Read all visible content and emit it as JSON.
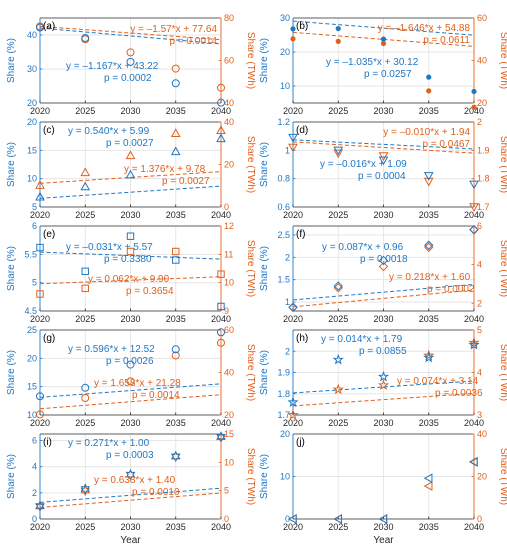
{
  "figure": {
    "xlabel": "Year",
    "left_ylabel": "Share (%)",
    "right_ylabel": "Share (TWh)",
    "colors": {
      "left": "#1f77c4",
      "right": "#e0601c"
    }
  },
  "chart_data": [
    {
      "panel_label": "(a)",
      "type": "scatter",
      "x": [
        2020,
        2025,
        2030,
        2035,
        2040
      ],
      "xlim": [
        2020,
        2040
      ],
      "left": {
        "ylim": [
          20,
          45
        ],
        "yticks": [
          20,
          30,
          40
        ],
        "marker": "circle",
        "values": [
          42.2,
          39.1,
          32.1,
          25.8,
          20.1
        ],
        "fit": {
          "slope": -1.167,
          "intercept": 43.22
        },
        "eq": "y = –1.167*x + 43.22",
        "p": "p = 0.0002"
      },
      "right": {
        "ylim": [
          40,
          80
        ],
        "yticks": [
          40,
          60,
          80
        ],
        "marker": "circle",
        "values": [
          76.0,
          70.0,
          63.8,
          56.2,
          47.2
        ],
        "fit": {
          "slope": -1.57,
          "intercept": 77.64
        },
        "eq": "y = –1.57*x + 77.64",
        "p": "p = 0.0014"
      }
    },
    {
      "panel_label": "(b)",
      "type": "scatter",
      "x": [
        2020,
        2025,
        2030,
        2035,
        2040
      ],
      "xlim": [
        2020,
        2040
      ],
      "left": {
        "ylim": [
          5,
          30
        ],
        "yticks": [
          10,
          20,
          30
        ],
        "marker": "dot",
        "values": [
          26.8,
          26.9,
          23.8,
          12.6,
          8.4
        ],
        "fit": {
          "slope": -1.035,
          "intercept": 30.12
        },
        "eq": "y = –1.035*x + 30.12",
        "p": "p = 0.0257"
      },
      "right": {
        "ylim": [
          20,
          60
        ],
        "yticks": [
          20,
          40,
          60
        ],
        "marker": "dot",
        "values": [
          50.2,
          49.0,
          48.0,
          25.7,
          18.0
        ],
        "fit": {
          "slope": -1.646,
          "intercept": 54.88
        },
        "eq": "y = –1.646*x + 54.88",
        "p": "p = 0.0611"
      }
    },
    {
      "panel_label": "(c)",
      "type": "scatter",
      "x": [
        2020,
        2025,
        2030,
        2035,
        2040
      ],
      "xlim": [
        2020,
        2040
      ],
      "left": {
        "ylim": [
          5,
          20
        ],
        "yticks": [
          5,
          10,
          15,
          20
        ],
        "marker": "triangle-up",
        "values": [
          6.8,
          8.6,
          10.7,
          14.8,
          17.1
        ],
        "fit": {
          "slope": 0.54,
          "intercept": 5.99
        },
        "eq": "y = 0.540*x + 5.99",
        "p": "p = 0.0027"
      },
      "right": {
        "ylim": [
          0,
          40
        ],
        "yticks": [
          0,
          20,
          40
        ],
        "marker": "triangle-up",
        "values": [
          10.3,
          16.3,
          24.3,
          34.7,
          36.1
        ],
        "fit": {
          "slope": 1.376,
          "intercept": 9.78
        },
        "eq": "y = 1.376*x + 9.78",
        "p": "p = 0.0027"
      }
    },
    {
      "panel_label": "(d)",
      "type": "scatter",
      "x": [
        2020,
        2025,
        2030,
        2035,
        2040
      ],
      "xlim": [
        2020,
        2040
      ],
      "left": {
        "ylim": [
          0.6,
          1.2
        ],
        "yticks": [
          0.6,
          0.8,
          1,
          1.2
        ],
        "marker": "triangle-down",
        "values": [
          1.09,
          1.0,
          0.93,
          0.82,
          0.76
        ],
        "fit": {
          "slope": -0.016,
          "intercept": 1.09
        },
        "eq": "y = –0.016*x + 1.09",
        "p": "p = 0.0004"
      },
      "right": {
        "ylim": [
          1.7,
          2.0
        ],
        "yticks": [
          1.7,
          1.8,
          1.9,
          2.0
        ],
        "marker": "triangle-down",
        "values": [
          1.91,
          1.89,
          1.88,
          1.79,
          1.7
        ],
        "fit": {
          "slope": -0.01,
          "intercept": 1.94
        },
        "eq": "y = –0.010*x + 1.94",
        "p": "p = 0.0467"
      }
    },
    {
      "panel_label": "(e)",
      "type": "scatter",
      "x": [
        2020,
        2025,
        2030,
        2035,
        2040
      ],
      "xlim": [
        2020,
        2040
      ],
      "left": {
        "ylim": [
          4.5,
          6
        ],
        "yticks": [
          4.5,
          5,
          5.5,
          6
        ],
        "marker": "square",
        "values": [
          5.62,
          5.2,
          5.82,
          5.4,
          4.58
        ],
        "fit": {
          "slope": -0.031,
          "intercept": 5.57
        },
        "eq": "y = –0.031*x + 5.57",
        "p": "p = 0.3380"
      },
      "right": {
        "ylim": [
          9,
          12
        ],
        "yticks": [
          9,
          10,
          11,
          12
        ],
        "marker": "square",
        "values": [
          9.6,
          9.8,
          11.1,
          11.1,
          10.3
        ],
        "fit": {
          "slope": 0.062,
          "intercept": 9.9
        },
        "eq": "y = 0.062*x + 9.90",
        "p": "p = 0.3654"
      }
    },
    {
      "panel_label": "(f)",
      "type": "scatter",
      "x": [
        2020,
        2025,
        2030,
        2035,
        2040
      ],
      "xlim": [
        2020,
        2040
      ],
      "left": {
        "ylim": [
          0.8,
          2.7
        ],
        "yticks": [
          1,
          1.5,
          2,
          2.5
        ],
        "marker": "diamond",
        "values": [
          0.88,
          1.36,
          1.93,
          2.27,
          2.62
        ],
        "fit": {
          "slope": 0.087,
          "intercept": 0.96
        },
        "eq": "y = 0.087*x + 0.96",
        "p": "p = 0.0018"
      },
      "right": {
        "ylim": [
          1.6,
          6
        ],
        "yticks": [
          2,
          4,
          6
        ],
        "marker": "diamond",
        "values": [
          1.8,
          2.8,
          3.9,
          4.9,
          5.8
        ],
        "fit": {
          "slope": 0.218,
          "intercept": 1.6
        },
        "eq": "y = 0.218*x + 1.60",
        "p": "p = 0.0002"
      }
    },
    {
      "panel_label": "(g)",
      "type": "scatter",
      "x": [
        2020,
        2025,
        2030,
        2035,
        2040
      ],
      "xlim": [
        2020,
        2040
      ],
      "left": {
        "ylim": [
          10,
          25
        ],
        "yticks": [
          10,
          15,
          20,
          25
        ],
        "marker": "circle",
        "values": [
          13.3,
          14.8,
          18.9,
          21.6,
          24.6
        ],
        "fit": {
          "slope": 0.596,
          "intercept": 12.52
        },
        "eq": "y = 0.596*x + 12.52",
        "p": "p = 0.0026"
      },
      "right": {
        "ylim": [
          20,
          60
        ],
        "yticks": [
          20,
          40,
          60
        ],
        "marker": "circle",
        "values": [
          20.3,
          28.0,
          35.8,
          48.0,
          54.0
        ],
        "fit": {
          "slope": 1.658,
          "intercept": 21.28
        },
        "eq": "y = 1.658*x + 21.28",
        "p": "p = 0.0014"
      }
    },
    {
      "panel_label": "(h)",
      "type": "scatter",
      "x": [
        2020,
        2025,
        2030,
        2035,
        2040
      ],
      "xlim": [
        2020,
        2040
      ],
      "left": {
        "ylim": [
          1.7,
          2.1
        ],
        "yticks": [
          1.7,
          1.8,
          1.9,
          2.0
        ],
        "marker": "star",
        "values": [
          1.76,
          1.96,
          1.88,
          1.97,
          2.03
        ],
        "fit": {
          "slope": 0.014,
          "intercept": 1.79
        },
        "eq": "y = 0.014*x + 1.79",
        "p": "p = 0.0855"
      },
      "right": {
        "ylim": [
          3,
          5
        ],
        "yticks": [
          3,
          4,
          5
        ],
        "marker": "star",
        "values": [
          3.0,
          3.6,
          3.7,
          4.4,
          4.7
        ],
        "fit": {
          "slope": 0.074,
          "intercept": 3.14
        },
        "eq": "y = 0.074*x + 3.14",
        "p": "p = 0.0036"
      }
    },
    {
      "panel_label": "(i)",
      "type": "scatter",
      "x": [
        2020,
        2025,
        2030,
        2035,
        2040
      ],
      "xlim": [
        2020,
        2040
      ],
      "left": {
        "ylim": [
          0,
          6.5
        ],
        "yticks": [
          0,
          2,
          4,
          6
        ],
        "marker": "hexagram",
        "values": [
          1.0,
          2.3,
          3.4,
          4.8,
          6.3
        ],
        "fit": {
          "slope": 0.271,
          "intercept": 1.0
        },
        "eq": "y = 0.271*x + 1.00",
        "p": "p = 0.0003"
      },
      "right": {
        "ylim": [
          0,
          15
        ],
        "yticks": [
          0,
          5,
          10,
          15
        ],
        "marker": "hexagram",
        "values": [
          2.2,
          5.0,
          7.8,
          11.0,
          14.4
        ],
        "fit": {
          "slope": 0.638,
          "intercept": 1.4
        },
        "eq": "y = 0.638*x + 1.40",
        "p": "p = 0.0010"
      }
    },
    {
      "panel_label": "(j)",
      "type": "scatter",
      "x": [
        2020,
        2025,
        2030,
        2035,
        2040
      ],
      "xlim": [
        2020,
        2040
      ],
      "left": {
        "ylim": [
          0,
          20
        ],
        "yticks": [
          0,
          10,
          20
        ],
        "marker": "triangle-left",
        "values": [
          0,
          0,
          0,
          9.6,
          13.4
        ],
        "eq": "",
        "p": ""
      },
      "right": {
        "ylim": [
          0,
          40
        ],
        "yticks": [
          0,
          20,
          40
        ],
        "marker": "triangle-left",
        "values": [
          0,
          0,
          0,
          15.5,
          27.0
        ],
        "eq": "",
        "p": ""
      }
    }
  ]
}
